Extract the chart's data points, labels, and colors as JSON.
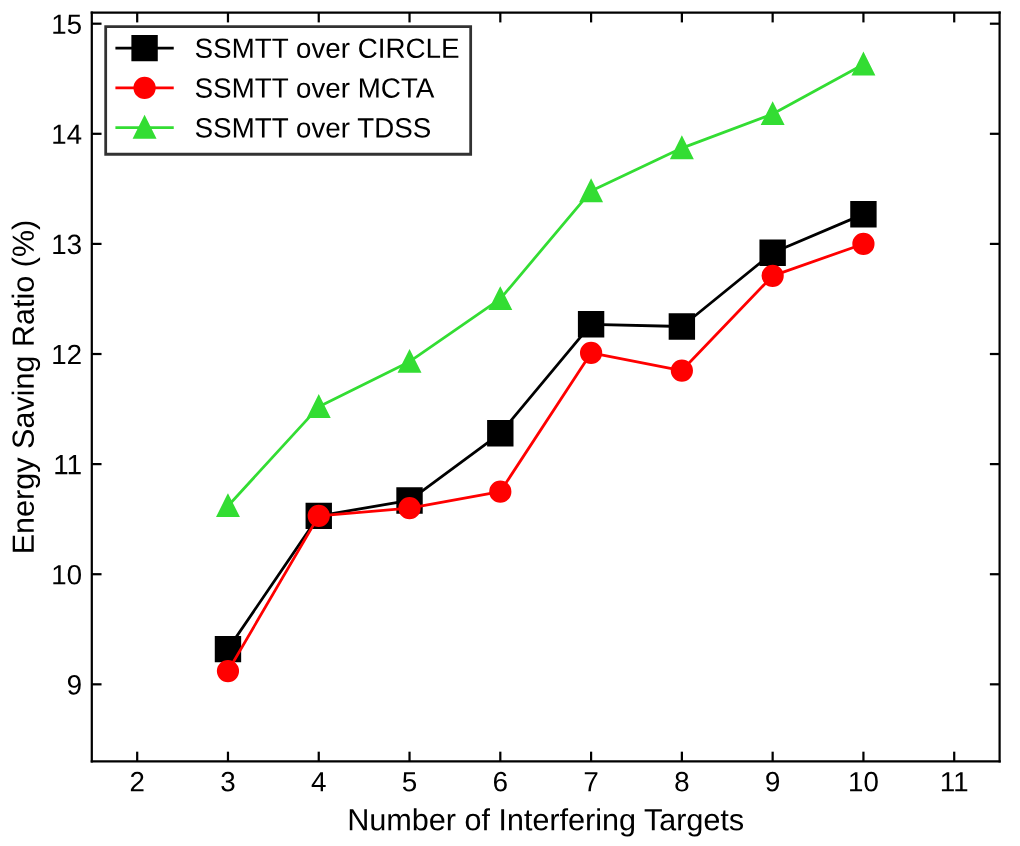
{
  "chart_data": {
    "type": "line",
    "xlabel": "Number of Interfering Targets",
    "ylabel": "Energy Saving Ratio (%)",
    "x": [
      3,
      4,
      5,
      6,
      7,
      8,
      9,
      10
    ],
    "series": [
      {
        "name": "SSMTT over CIRCLE",
        "color": "#000000",
        "marker": "square",
        "values": [
          9.32,
          10.53,
          10.67,
          11.28,
          12.27,
          12.25,
          12.92,
          13.27
        ]
      },
      {
        "name": "SSMTT over MCTA",
        "color": "#ff0000",
        "marker": "circle",
        "values": [
          9.12,
          10.53,
          10.6,
          10.75,
          12.01,
          11.85,
          12.71,
          13.0
        ]
      },
      {
        "name": "SSMTT over TDSS",
        "color": "#33dd33",
        "marker": "triangle",
        "values": [
          10.62,
          11.52,
          11.93,
          12.5,
          13.48,
          13.87,
          14.18,
          14.63
        ]
      }
    ],
    "xlim": [
      1.5,
      11.5
    ],
    "xticks": [
      2,
      3,
      4,
      5,
      6,
      7,
      8,
      9,
      10,
      11
    ],
    "ylim": [
      8.3,
      15.1
    ],
    "yticks": [
      9,
      10,
      11,
      12,
      13,
      14,
      15
    ],
    "grid": false,
    "legend": "top left",
    "line_style": "solid"
  }
}
